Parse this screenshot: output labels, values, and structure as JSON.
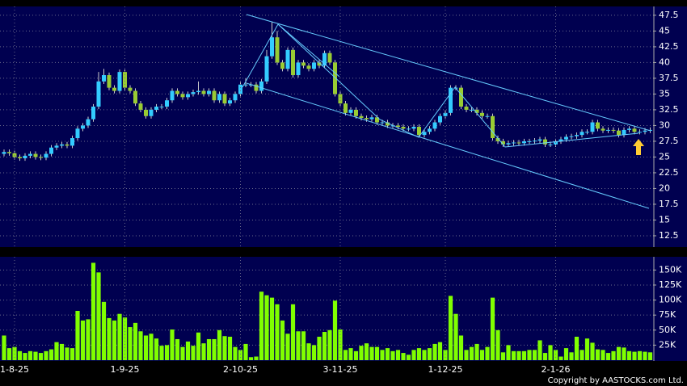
{
  "chart_data": [
    {
      "type": "candlestick",
      "up_color": "#33ccff",
      "down_color": "#99cc33",
      "wick_color": "#cccccc",
      "ylim": [
        10.7,
        48.9
      ],
      "yticks": [
        12.5,
        15,
        17.5,
        20,
        22.5,
        25,
        27.5,
        30,
        32.5,
        35,
        37.5,
        40,
        42.5,
        45,
        47.5
      ],
      "grid": true,
      "open": [
        25.5,
        25.8,
        25.6,
        25.0,
        24.8,
        25.2,
        25.5,
        25.0,
        24.9,
        25.5,
        26.5,
        26.8,
        27,
        26.8,
        28,
        29.5,
        30,
        31,
        33,
        37,
        38,
        36,
        35.5,
        38.5,
        36,
        35.5,
        33.5,
        32.5,
        31.5,
        32.5,
        33,
        33,
        34,
        35.5,
        35,
        34.5,
        35,
        35.3,
        35.5,
        35,
        35.5,
        34,
        35,
        33.5,
        34,
        35,
        36.5,
        36.5,
        36.5,
        35.5,
        37,
        41,
        44,
        40,
        39,
        42,
        38,
        40,
        39.5,
        39,
        40,
        39.5,
        41.5,
        40,
        35,
        33.5,
        32,
        32.5,
        31.5,
        31.2,
        31,
        31.3,
        30.5,
        30.5,
        30,
        30,
        29.8,
        29.5,
        29.5,
        29.8,
        28.5,
        29,
        29.5,
        30.5,
        31.5,
        32,
        36,
        36,
        33,
        32.5,
        32.5,
        32,
        31.5,
        31.5,
        28,
        27.5,
        27,
        27.2,
        27.3,
        27.2,
        27.5,
        27.5,
        27.6,
        27.8,
        27,
        27,
        27.5,
        27.8,
        28.2,
        28.3,
        28.5,
        29,
        29,
        30.5,
        29.5,
        29.2,
        29.3,
        29.2,
        28.5,
        29.3,
        29.5,
        29,
        29,
        29.2
      ],
      "high": [
        26.2,
        26.2,
        26.0,
        25.4,
        25.6,
        25.9,
        25.9,
        25.4,
        25.9,
        26.9,
        27.2,
        27.4,
        27.4,
        28.4,
        29.9,
        30.4,
        31.4,
        33.4,
        38.5,
        39,
        38.4,
        36.4,
        38.9,
        38.9,
        36.4,
        35.9,
        33.9,
        32.9,
        32.9,
        33.4,
        33.4,
        34.4,
        35.9,
        35.9,
        35.4,
        35.4,
        35.7,
        37,
        35.9,
        35.9,
        35.9,
        35.4,
        35.4,
        34.4,
        35.4,
        36.9,
        37.5,
        36.9,
        36.9,
        37.4,
        42,
        46.5,
        45,
        40.4,
        42.4,
        42.4,
        40.4,
        40.4,
        39.9,
        40.4,
        40.4,
        41.9,
        41.9,
        40.4,
        35.4,
        33.9,
        32.9,
        32.9,
        31.9,
        31.6,
        31.7,
        31.7,
        30.9,
        30.9,
        30.4,
        30.4,
        30.2,
        29.9,
        30.2,
        30.2,
        29.4,
        29.9,
        30.9,
        31.9,
        32.4,
        36.4,
        36.4,
        36.4,
        33.4,
        32.9,
        32.9,
        32.4,
        31.9,
        31.9,
        28.4,
        27.9,
        27.6,
        27.7,
        27.7,
        27.9,
        27.9,
        28,
        28.2,
        28.2,
        27.4,
        27.9,
        28.2,
        28.6,
        28.7,
        28.9,
        29.4,
        29.4,
        30.9,
        30.9,
        29.9,
        29.7,
        29.7,
        29.6,
        29.7,
        29.9,
        29.9,
        29.4,
        29.6,
        29.7
      ],
      "low": [
        25.1,
        25.2,
        24.6,
        24.4,
        24.4,
        24.8,
        24.6,
        24.5,
        24.5,
        25.1,
        26.1,
        26.4,
        26.4,
        26.4,
        27.6,
        29.1,
        29.6,
        30.6,
        32.6,
        36.6,
        35.6,
        35.1,
        35.1,
        35.6,
        35.1,
        33.1,
        32.1,
        31.1,
        31.1,
        32.1,
        32.6,
        32.6,
        33.6,
        34.6,
        34.1,
        34.1,
        34.6,
        34.9,
        34.6,
        34.6,
        33.6,
        33.6,
        33.1,
        33.1,
        33.6,
        34.6,
        36.1,
        36.1,
        35.1,
        35.1,
        36.6,
        40.6,
        39.6,
        38.6,
        38.6,
        37.6,
        37.6,
        39.1,
        38.6,
        38.6,
        39.1,
        39.1,
        39.6,
        34.6,
        33.1,
        31.6,
        31.6,
        31.1,
        30.8,
        30.6,
        30.6,
        30.1,
        30.1,
        29.6,
        29.6,
        29.4,
        29.1,
        29.1,
        29.1,
        28.1,
        28.1,
        28.6,
        29.1,
        30.1,
        31.1,
        31.6,
        35.6,
        32.6,
        32.1,
        32.1,
        31.6,
        31.1,
        31.1,
        27.6,
        27.1,
        26.6,
        26.6,
        26.8,
        26.8,
        26.8,
        27.1,
        27.1,
        27.2,
        26.6,
        26.6,
        26.6,
        27.1,
        27.4,
        27.8,
        27.9,
        28.1,
        28.6,
        28.6,
        29.1,
        28.8,
        28.8,
        28.8,
        28.1,
        28.1,
        28.9,
        28.6,
        28.6,
        28.6,
        28.8
      ],
      "close": [
        25.8,
        25.6,
        25.0,
        24.8,
        25.2,
        25.5,
        25.0,
        24.9,
        25.5,
        26.5,
        26.8,
        27,
        26.8,
        28,
        29.5,
        30,
        31,
        33,
        37,
        38,
        36,
        35.5,
        38.5,
        36,
        35.5,
        33.5,
        32.5,
        31.5,
        32.5,
        33,
        33,
        34,
        35.5,
        35,
        34.5,
        35,
        35.3,
        35.5,
        35,
        35.5,
        34,
        35,
        33.5,
        34,
        35,
        36.5,
        36.5,
        36.5,
        35.5,
        37,
        41,
        44,
        40,
        39,
        42,
        38,
        40,
        39.5,
        39,
        40,
        39.5,
        41.5,
        40,
        35,
        33.5,
        32,
        32.5,
        31.5,
        31.2,
        31,
        31.3,
        30.5,
        30.5,
        30,
        30,
        29.8,
        29.5,
        29.5,
        29.8,
        28.5,
        29,
        29.5,
        30.5,
        31.5,
        32,
        36,
        36,
        33,
        32.5,
        32.5,
        32,
        31.5,
        31.5,
        28,
        27.5,
        27,
        27.2,
        27.3,
        27.2,
        27.5,
        27.5,
        27.6,
        27.8,
        27,
        27,
        27.5,
        27.8,
        28.2,
        28.3,
        28.5,
        29,
        29,
        30.5,
        29.5,
        29.2,
        29.3,
        29.2,
        28.5,
        29.3,
        29.5,
        29,
        29,
        29.2,
        29.3
      ]
    },
    {
      "type": "bar",
      "color": "#80ff00",
      "ylim": [
        0,
        172000
      ],
      "yticks": [
        {
          "value": 25000,
          "label": "25K"
        },
        {
          "value": 50000,
          "label": "50K"
        },
        {
          "value": 75000,
          "label": "75K"
        },
        {
          "value": 100000,
          "label": "100K"
        },
        {
          "value": 125000,
          "label": "125K"
        },
        {
          "value": 150000,
          "label": "150K"
        }
      ],
      "grid": true,
      "categories": [
        null,
        null,
        "1-8-25",
        null,
        null,
        null,
        null,
        null,
        null,
        null,
        null,
        null,
        null,
        null,
        null,
        null,
        null,
        null,
        null,
        null,
        null,
        null,
        null,
        "1-9-25",
        null,
        null,
        null,
        null,
        null,
        null,
        null,
        null,
        null,
        null,
        null,
        null,
        null,
        null,
        null,
        null,
        null,
        null,
        null,
        null,
        null,
        "2-10-25",
        null,
        null,
        null,
        null,
        null,
        null,
        null,
        null,
        null,
        null,
        null,
        null,
        null,
        null,
        null,
        null,
        null,
        null,
        "3-11-25",
        null,
        null,
        null,
        null,
        null,
        null,
        null,
        null,
        null,
        null,
        null,
        null,
        null,
        null,
        null,
        null,
        null,
        null,
        null,
        "1-12-25",
        null,
        null,
        null,
        null,
        null,
        null,
        null,
        null,
        null,
        null,
        null,
        null,
        null,
        null,
        null,
        null,
        null,
        null,
        null,
        null,
        "2-1-26",
        null,
        null,
        null,
        null,
        null,
        null,
        null,
        null,
        null,
        null,
        null,
        null,
        null,
        null,
        null,
        null,
        null,
        null
      ],
      "values": [
        41000,
        20000,
        22000,
        15000,
        12000,
        15000,
        14000,
        12000,
        15000,
        18000,
        30000,
        27000,
        21000,
        20000,
        82000,
        66000,
        68000,
        162000,
        146000,
        97000,
        70000,
        66000,
        77000,
        71000,
        55000,
        62000,
        48000,
        41000,
        44000,
        36000,
        24000,
        25000,
        51000,
        35000,
        22000,
        31000,
        24000,
        46000,
        28000,
        35000,
        35000,
        50000,
        40000,
        39000,
        22000,
        17000,
        27000,
        5000,
        6000,
        114000,
        108000,
        104000,
        93000,
        66000,
        44000,
        93000,
        48000,
        48000,
        28000,
        25000,
        39000,
        47000,
        50000,
        99000,
        51000,
        17000,
        20000,
        15000,
        24000,
        28000,
        22000,
        22000,
        17000,
        20000,
        15000,
        17000,
        12000,
        9000,
        17000,
        20000,
        17000,
        20000,
        27000,
        30000,
        17000,
        107000,
        77000,
        41000,
        17000,
        22000,
        27000,
        17000,
        22000,
        104000,
        50000,
        13000,
        25000,
        15000,
        15000,
        15000,
        17000,
        17000,
        33000,
        12000,
        25000,
        17000,
        6000,
        20000,
        13000,
        39000,
        17000,
        36000,
        29000,
        18000,
        17000,
        12000,
        15000,
        22000,
        21000,
        15000,
        14000,
        15000,
        14000,
        13000
      ]
    }
  ],
  "copyright": "Copyright by AASTOCKS.com Ltd."
}
